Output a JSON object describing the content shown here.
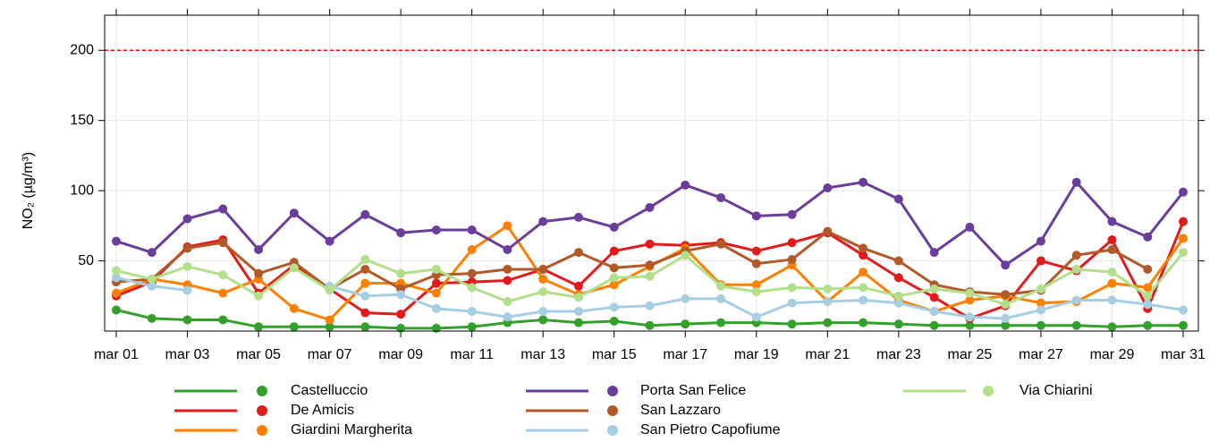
{
  "chart_data": {
    "type": "line",
    "y_label": "NO₂ (µg/m³)",
    "categories": [
      "mar 01",
      null,
      "mar 03",
      null,
      "mar 05",
      null,
      "mar 07",
      null,
      "mar 09",
      null,
      "mar 11",
      null,
      "mar 13",
      null,
      "mar 15",
      null,
      "mar 17",
      null,
      "mar 19",
      null,
      "mar 21",
      null,
      "mar 23",
      null,
      "mar 25",
      null,
      "mar 27",
      null,
      "mar 29",
      null,
      "mar 31"
    ],
    "ylim": [
      0,
      225
    ],
    "yticks": [
      50,
      100,
      150,
      200
    ],
    "grid": true,
    "reference_line": {
      "value": 200,
      "color": "#ff0000"
    },
    "legend_position": "bottom",
    "series": [
      {
        "name": "Castelluccio",
        "color": "#33a02c",
        "values": [
          15,
          9,
          8,
          8,
          3,
          3,
          3,
          3,
          2,
          2,
          3,
          6,
          8,
          6,
          7,
          4,
          5,
          6,
          6,
          5,
          6,
          6,
          5,
          4,
          4,
          4,
          4,
          4,
          3,
          4,
          4
        ]
      },
      {
        "name": "De Amicis",
        "color": "#e31a1c",
        "values": [
          25,
          35,
          60,
          65,
          27,
          47,
          30,
          13,
          12,
          34,
          35,
          36,
          44,
          32,
          57,
          62,
          61,
          63,
          57,
          63,
          70,
          54,
          38,
          24,
          9,
          18,
          50,
          43,
          65,
          16,
          78
        ]
      },
      {
        "name": "Giardini Margherita",
        "color": "#ff7f00",
        "values": [
          27,
          37,
          33,
          27,
          37,
          16,
          8,
          34,
          34,
          27,
          58,
          75,
          37,
          26,
          33,
          46,
          59,
          33,
          33,
          47,
          21,
          42,
          22,
          14,
          22,
          25,
          20,
          21,
          34,
          31,
          66
        ]
      },
      {
        "name": "Porta San Felice",
        "color": "#6a3d9a",
        "values": [
          64,
          56,
          80,
          87,
          58,
          84,
          64,
          83,
          70,
          72,
          72,
          58,
          78,
          81,
          74,
          88,
          104,
          95,
          82,
          83,
          102,
          106,
          94,
          56,
          74,
          47,
          64,
          106,
          78,
          67,
          99
        ]
      },
      {
        "name": "San Lazzaro",
        "color": "#b15928",
        "values": [
          35,
          37,
          59,
          63,
          41,
          49,
          30,
          44,
          30,
          40,
          41,
          44,
          44,
          56,
          45,
          47,
          57,
          62,
          48,
          51,
          71,
          59,
          50,
          33,
          28,
          26,
          29,
          54,
          58,
          44,
          null
        ]
      },
      {
        "name": "San Pietro Capofiume",
        "color": "#a6cee3",
        "values": [
          38,
          32,
          29,
          null,
          null,
          null,
          32,
          25,
          26,
          16,
          14,
          10,
          14,
          14,
          17,
          18,
          23,
          23,
          10,
          20,
          21,
          22,
          20,
          14,
          10,
          9,
          15,
          22,
          22,
          19,
          15
        ]
      },
      {
        "name": "Via Chiarini",
        "color": "#b2df8a",
        "values": [
          43,
          37,
          46,
          40,
          25,
          45,
          29,
          51,
          41,
          44,
          31,
          21,
          28,
          24,
          38,
          39,
          54,
          32,
          28,
          31,
          30,
          31,
          25,
          30,
          27,
          19,
          30,
          44,
          42,
          25,
          56
        ]
      }
    ]
  }
}
